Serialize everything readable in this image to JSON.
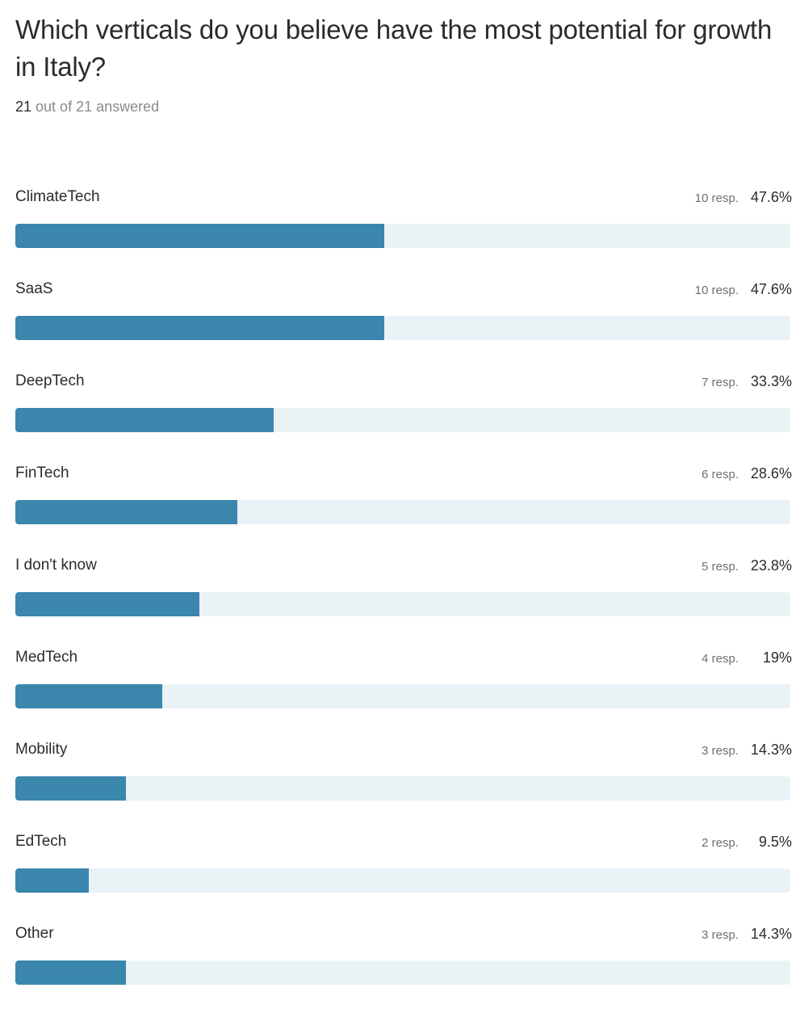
{
  "question": {
    "title": "Which verticals do you believe have the most potential for growth in Italy?",
    "answered_count": "21",
    "answered_rest": " out of 21 answered"
  },
  "colors": {
    "bar_fill": "#3a86ad",
    "bar_track": "#eaf2f6"
  },
  "chart_data": {
    "type": "bar",
    "orientation": "horizontal",
    "categories": [
      "ClimateTech",
      "SaaS",
      "DeepTech",
      "FinTech",
      "I don't know",
      "MedTech",
      "Mobility",
      "EdTech",
      "Other"
    ],
    "responses": [
      10,
      10,
      7,
      6,
      5,
      4,
      3,
      2,
      3
    ],
    "values": [
      47.6,
      47.6,
      33.3,
      28.6,
      23.8,
      19,
      14.3,
      9.5,
      14.3
    ],
    "response_labels": [
      "10 resp.",
      "10 resp.",
      "7 resp.",
      "6 resp.",
      "5 resp.",
      "4 resp.",
      "3 resp.",
      "2 resp.",
      "3 resp."
    ],
    "percent_labels": [
      "47.6%",
      "47.6%",
      "33.3%",
      "28.6%",
      "23.8%",
      "19%",
      "14.3%",
      "9.5%",
      "14.3%"
    ],
    "xlim": [
      0,
      100
    ]
  }
}
